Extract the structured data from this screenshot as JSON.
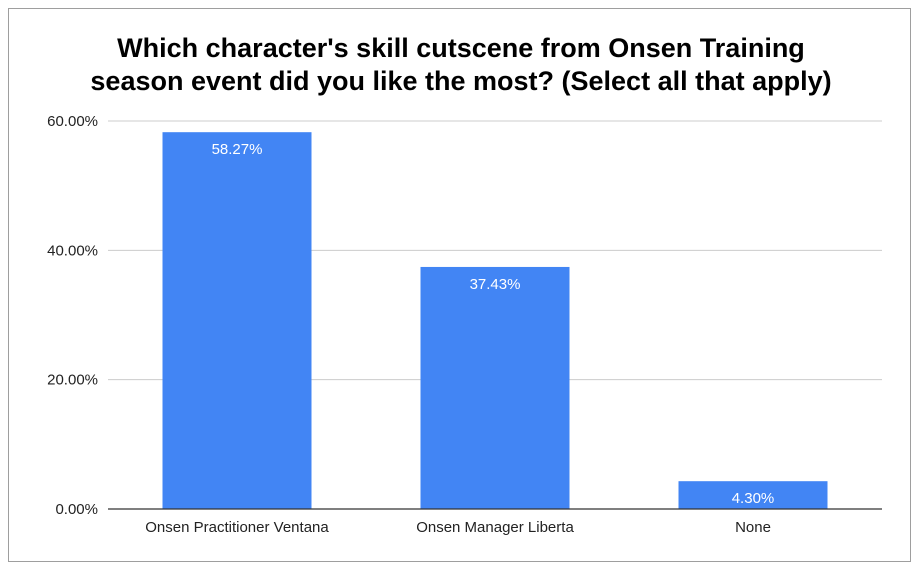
{
  "chart_data": {
    "type": "bar",
    "title_lines": [
      "Which character's skill cutscene from Onsen Training",
      "season event did you like the most? (Select all that apply)"
    ],
    "categories": [
      "Onsen Practitioner Ventana",
      "Onsen Manager Liberta",
      "None"
    ],
    "values": [
      58.27,
      37.43,
      4.3
    ],
    "data_labels": [
      "58.27%",
      "37.43%",
      "4.30%"
    ],
    "y_ticks": [
      0,
      20,
      40,
      60
    ],
    "y_tick_labels": [
      "0.00%",
      "20.00%",
      "40.00%",
      "60.00%"
    ],
    "ylim": [
      0,
      60
    ],
    "grid": true,
    "legend": "none",
    "bar_color": "#4285f4",
    "grid_color": "#cccccc",
    "axis_color": "#333333"
  }
}
